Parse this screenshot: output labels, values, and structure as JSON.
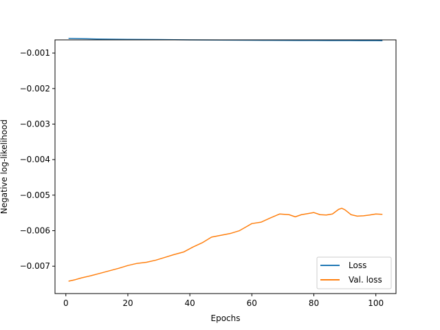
{
  "chart_data": {
    "type": "line",
    "title": "",
    "xlabel": "Epochs",
    "ylabel": "Negative log-likelihood",
    "xlim": [
      -3.5,
      106.5
    ],
    "ylim": [
      -0.00777,
      -0.00063
    ],
    "xticks": [
      0,
      20,
      40,
      60,
      80,
      100
    ],
    "xtick_labels": [
      "0",
      "20",
      "40",
      "60",
      "80",
      "100"
    ],
    "yticks": [
      -0.007,
      -0.006,
      -0.005,
      -0.004,
      -0.003,
      -0.002,
      -0.001
    ],
    "ytick_labels": [
      "−0.007",
      "−0.006",
      "−0.005",
      "−0.004",
      "−0.003",
      "−0.002",
      "−0.001"
    ],
    "grid": false,
    "legend_position": "lower-right",
    "series": [
      {
        "name": "Loss",
        "color": "#1f77b4",
        "x": [
          1,
          5,
          10,
          15,
          20,
          25,
          30,
          35,
          40,
          45,
          50,
          55,
          60,
          65,
          70,
          75,
          80,
          85,
          90,
          95,
          100,
          102
        ],
        "y": [
          -0.00059,
          -0.000595,
          -0.000605,
          -0.00061,
          -0.000615,
          -0.000618,
          -0.00062,
          -0.000625,
          -0.00063,
          -0.000632,
          -0.000635,
          -0.000638,
          -0.00064,
          -0.000642,
          -0.000645,
          -0.000646,
          -0.000648,
          -0.00065,
          -0.00065,
          -0.000651,
          -0.000652,
          -0.000653
        ]
      },
      {
        "name": "Val. loss",
        "color": "#ff7f0e",
        "x": [
          1,
          3,
          5,
          8,
          11,
          14,
          17,
          20,
          23,
          26,
          29,
          32,
          35,
          38,
          41,
          44,
          47,
          50,
          53,
          56,
          58,
          60,
          63,
          66,
          69,
          72,
          74,
          76,
          78,
          80,
          82,
          84,
          86,
          88,
          89,
          90,
          92,
          94,
          96,
          98,
          100,
          102
        ],
        "y": [
          -0.00742,
          -0.00738,
          -0.00733,
          -0.00727,
          -0.0072,
          -0.00713,
          -0.00706,
          -0.00698,
          -0.00692,
          -0.00689,
          -0.00683,
          -0.00675,
          -0.00667,
          -0.0066,
          -0.00646,
          -0.00634,
          -0.00618,
          -0.00613,
          -0.00608,
          -0.006,
          -0.0059,
          -0.0058,
          -0.00576,
          -0.00564,
          -0.00553,
          -0.00555,
          -0.00561,
          -0.00555,
          -0.00552,
          -0.00549,
          -0.00555,
          -0.00556,
          -0.00553,
          -0.0054,
          -0.00537,
          -0.00541,
          -0.00555,
          -0.00559,
          -0.00558,
          -0.00556,
          -0.00553,
          -0.00554
        ]
      }
    ]
  }
}
